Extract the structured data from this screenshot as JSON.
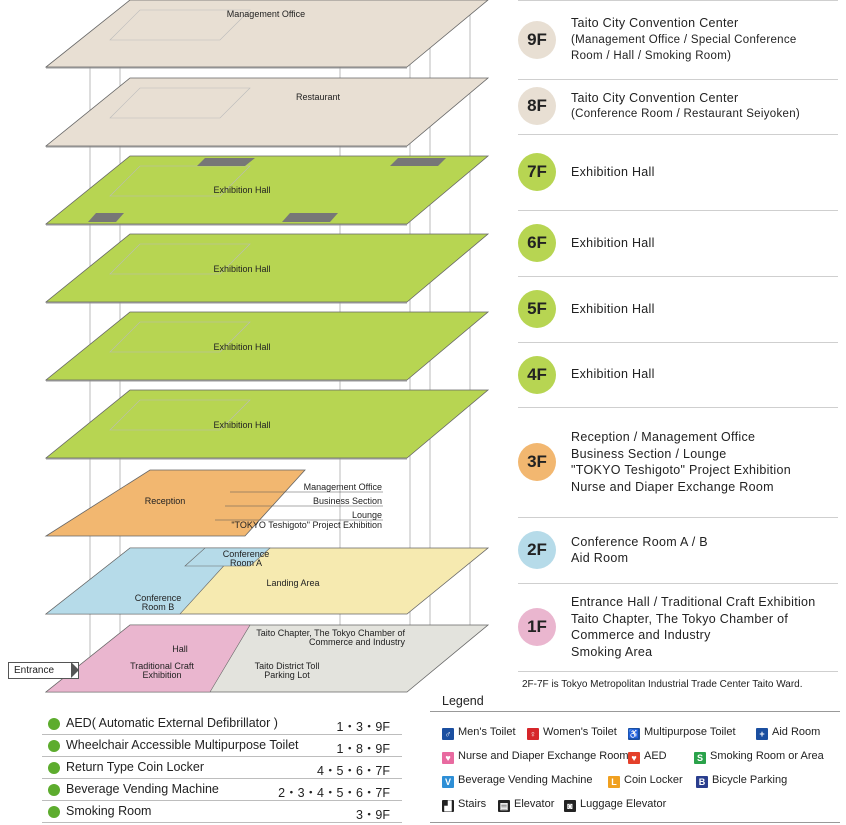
{
  "floors": [
    {
      "level": "9F",
      "color": "#e8dfd3",
      "lines": [
        "Taito City Convention Center"
      ],
      "sub": [
        "(Management Office / Special Conference",
        "Room / Hall / Smoking Room)"
      ]
    },
    {
      "level": "8F",
      "color": "#e8dfd3",
      "lines": [
        "Taito City Convention Center"
      ],
      "sub": [
        "(Conference Room / Restaurant Seiyoken)"
      ]
    },
    {
      "level": "7F",
      "color": "#b7d552",
      "lines": [
        "Exhibition Hall"
      ],
      "sub": []
    },
    {
      "level": "6F",
      "color": "#b7d552",
      "lines": [
        "Exhibition Hall"
      ],
      "sub": []
    },
    {
      "level": "5F",
      "color": "#b7d552",
      "lines": [
        "Exhibition Hall"
      ],
      "sub": []
    },
    {
      "level": "4F",
      "color": "#b7d552",
      "lines": [
        "Exhibition Hall"
      ],
      "sub": []
    },
    {
      "level": "3F",
      "color": "#f2b770",
      "lines": [
        "Reception / Management Office",
        "Business Section / Lounge",
        "\"TOKYO Teshigoto\" Project Exhibition",
        "Nurse and Diaper Exchange Room"
      ],
      "sub": []
    },
    {
      "level": "2F",
      "color": "#b6dbe9",
      "lines": [
        "Conference Room A / B",
        "Aid Room"
      ],
      "sub": []
    },
    {
      "level": "1F",
      "color": "#eab6cf",
      "lines": [
        "Entrance Hall / Traditional Craft Exhibition",
        "Taito Chapter, The Tokyo Chamber of",
        "Commerce and Industry",
        "Smoking Area"
      ],
      "sub": []
    }
  ],
  "plan_labels": {
    "f9_management_office": "Management Office",
    "f8_restaurant": "Restaurant",
    "exhibition_hall": "Exhibition Hall",
    "f3_reception": "Reception",
    "f3_management_office": "Management Office",
    "f3_business_section": "Business Section",
    "f3_lounge": "Lounge",
    "f3_tokyo_teshigoto": "\"TOKYO Teshigoto\" Project Exhibition",
    "f2_conference_a": [
      "Conference",
      "Room A"
    ],
    "f2_conference_b": [
      "Conference",
      "Room B"
    ],
    "f2_landing_area": "Landing Area",
    "f1_hall": "Hall",
    "f1_traditional_craft": [
      "Traditional Craft",
      "Exhibition"
    ],
    "f1_taito_chapter": [
      "Taito Chapter, The Tokyo Chamber of",
      "Commerce and Industry"
    ],
    "f1_parking": [
      "Taito District Toll",
      "Parking Lot"
    ],
    "entrance": "Entrance"
  },
  "note": "2F-7F is Tokyo Metropolitan Industrial Trade Center Taito Ward.",
  "facilities": [
    {
      "label": "AED( Automatic External Defibrillator )",
      "floors": "1・3・9F"
    },
    {
      "label": "Wheelchair Accessible Multipurpose Toilet",
      "floors": "1・8・9F"
    },
    {
      "label": "Return Type Coin Locker",
      "floors": "4・5・6・7F"
    },
    {
      "label": "Beverage Vending Machine",
      "floors": "2・3・4・5・6・7F"
    },
    {
      "label": "Smoking Room",
      "floors": "3・9F"
    }
  ],
  "legend": {
    "title": "Legend",
    "items": [
      {
        "label": "Men's Toilet",
        "icon": "mens-toilet-icon",
        "color": "#1b4fa0",
        "glyph": "♂"
      },
      {
        "label": "Women's Toilet",
        "icon": "womens-toilet-icon",
        "color": "#d6262a",
        "glyph": "♀"
      },
      {
        "label": "Multipurpose Toilet",
        "icon": "multipurpose-toilet-icon",
        "color": "#1b4fa0",
        "glyph": "♿"
      },
      {
        "label": "Aid Room",
        "icon": "aid-room-icon",
        "color": "#1b4fa0",
        "glyph": "+"
      },
      {
        "label": "Nurse and Diaper Exchange Room",
        "icon": "nursing-room-icon",
        "color": "#e86aa0",
        "glyph": "♥"
      },
      {
        "label": "AED",
        "icon": "aed-icon",
        "color": "#e4402a",
        "glyph": "♥"
      },
      {
        "label": "Smoking Room or Area",
        "icon": "smoking-icon",
        "color": "#2aa24a",
        "glyph": "S"
      },
      {
        "label": "Beverage Vending Machine",
        "icon": "vending-machine-icon",
        "color": "#2e8fd6",
        "glyph": "V"
      },
      {
        "label": "Coin Locker",
        "icon": "coin-locker-icon",
        "color": "#f0a020",
        "glyph": "L"
      },
      {
        "label": "Bicycle Parking",
        "icon": "bicycle-icon",
        "color": "#2a3e8e",
        "glyph": "B"
      },
      {
        "label": "Stairs",
        "icon": "stairs-icon",
        "color": "#222222",
        "glyph": "▟"
      },
      {
        "label": "Elevator",
        "icon": "elevator-icon",
        "color": "#222222",
        "glyph": "▤"
      },
      {
        "label": "Luggage Elevator",
        "icon": "luggage-elevator-icon",
        "color": "#222222",
        "glyph": "◙"
      }
    ]
  }
}
